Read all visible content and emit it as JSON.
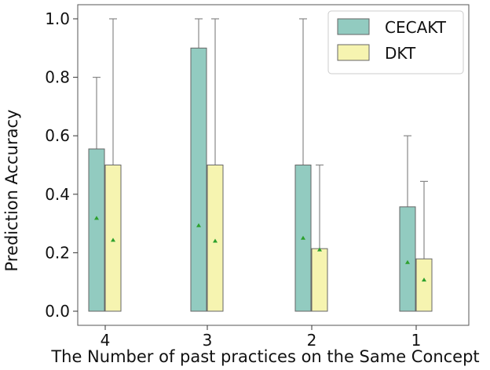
{
  "chart_data": {
    "type": "bar",
    "subtype": "box-style bars with whiskers and mean markers",
    "title": "",
    "xlabel": "The Number of past practices on the Same Concept",
    "ylabel": "Prediction Accuracy",
    "categories": [
      "4",
      "3",
      "2",
      "1"
    ],
    "ylim": [
      -0.05,
      1.05
    ],
    "yticks": [
      "0.0",
      "0.2",
      "0.4",
      "0.6",
      "0.8",
      "1.0"
    ],
    "ytick_values": [
      0.0,
      0.2,
      0.4,
      0.6,
      0.8,
      1.0
    ],
    "legend_position": "top-right",
    "series": [
      {
        "name": "CECAKT",
        "color": "#92cbc0",
        "values": [
          0.555,
          0.9,
          0.5,
          0.357
        ],
        "whisker_max": [
          0.8,
          1.0,
          1.0,
          0.6
        ],
        "means": [
          0.318,
          0.293,
          0.25,
          0.167
        ]
      },
      {
        "name": "DKT",
        "color": "#f6f4b0",
        "values": [
          0.5,
          0.5,
          0.214,
          0.179
        ],
        "whisker_max": [
          1.0,
          1.0,
          0.5,
          0.444
        ],
        "means": [
          0.243,
          0.24,
          0.21,
          0.107
        ]
      }
    ],
    "mean_marker_color": "#2ca02c"
  }
}
